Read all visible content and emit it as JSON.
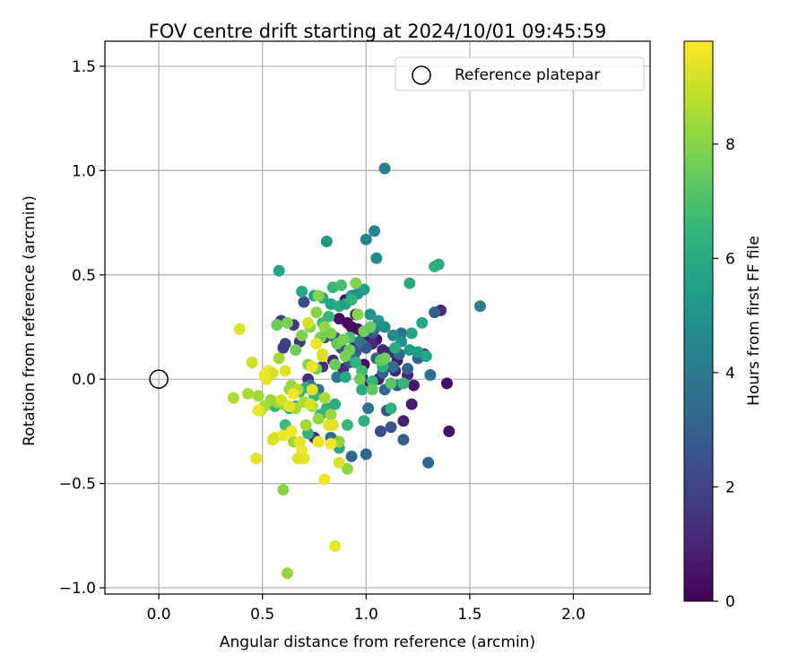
{
  "chart_data": {
    "type": "scatter",
    "title": "FOV centre drift starting at 2024/10/01 09:45:59",
    "xlabel": "Angular distance from reference (arcmin)",
    "ylabel": "Rotation from reference (arcmin)",
    "xlim": [
      -0.26,
      2.37
    ],
    "ylim": [
      -1.03,
      1.62
    ],
    "xticks": [
      0.0,
      0.5,
      1.0,
      1.5,
      2.0
    ],
    "xtick_labels": [
      "0.0",
      "0.5",
      "1.0",
      "1.5",
      "2.0"
    ],
    "yticks": [
      -1.0,
      -0.5,
      0.0,
      0.5,
      1.0,
      1.5
    ],
    "ytick_labels": [
      "−1.0",
      "−0.5",
      "0.0",
      "0.5",
      "1.0",
      "1.5"
    ],
    "grid": true,
    "legend": {
      "placement": "top-right",
      "entries": [
        {
          "label": "Reference platepar",
          "marker": "open-circle"
        }
      ]
    },
    "reference_point": {
      "x": 0.0,
      "y": 0.0
    },
    "colorbar": {
      "label": "Hours from first FF file",
      "colormap": "viridis",
      "range": [
        0,
        9.8
      ],
      "ticks": [
        0,
        2,
        4,
        6,
        8
      ],
      "tick_labels": [
        "0",
        "2",
        "4",
        "6",
        "8"
      ],
      "colors": [
        "#440154",
        "#482878",
        "#3e4989",
        "#31688e",
        "#26828e",
        "#1f9e89",
        "#35b779",
        "#6ece58",
        "#b5de2b",
        "#fde725"
      ]
    },
    "series": [
      {
        "x": [
          0.91,
          0.93,
          0.96,
          0.98,
          1.0,
          1.05,
          0.87,
          0.9,
          0.95,
          0.99,
          1.02,
          1.06,
          1.1,
          1.15,
          1.2,
          1.23,
          1.39,
          1.4,
          1.36,
          1.22,
          1.18,
          1.14,
          1.12,
          1.08,
          1.03,
          0.98,
          0.94,
          0.89,
          0.84,
          0.79,
          0.75,
          0.72,
          0.68,
          0.65,
          0.6,
          1.28
        ],
        "y": [
          0.27,
          0.25,
          0.24,
          0.23,
          0.21,
          0.19,
          0.29,
          0.38,
          0.31,
          0.07,
          -0.02,
          0.0,
          0.06,
          0.09,
          0.02,
          -0.03,
          -0.02,
          -0.25,
          0.33,
          -0.12,
          -0.2,
          0.04,
          0.13,
          0.14,
          0.17,
          0.01,
          0.15,
          0.05,
          0.09,
          0.06,
          -0.28,
          0.0,
          0.18,
          0.26,
          0.15,
          0.12
        ],
        "c": [
          0.2,
          0.3,
          0.4,
          0.5,
          0.6,
          0.5,
          0.4,
          0.6,
          0.8,
          0.3,
          0.5,
          0.8,
          0.9,
          0.7,
          1.0,
          0.6,
          0.4,
          0.5,
          1.2,
          0.7,
          0.8,
          1.0,
          1.1,
          0.9,
          1.1,
          1.2,
          1.3,
          1.2,
          1.0,
          1.3,
          1.4,
          1.2,
          1.5,
          1.6,
          1.7,
          1.5
        ]
      },
      {
        "x": [
          0.61,
          0.59,
          0.7,
          0.8,
          0.85,
          0.88,
          0.92,
          0.95,
          0.97,
          1.0,
          1.03,
          1.07,
          1.1,
          1.12,
          1.15,
          1.18,
          1.2,
          1.25,
          1.3,
          1.33,
          1.05,
          1.08,
          1.0,
          0.93,
          0.86,
          0.83,
          0.77,
          0.73,
          0.94,
          1.13,
          0.97,
          1.01,
          1.17,
          1.31,
          1.16,
          1.09,
          0.86,
          1.04
        ],
        "y": [
          0.17,
          0.28,
          0.37,
          0.2,
          0.2,
          0.15,
          0.08,
          0.13,
          0.18,
          0.15,
          0.22,
          -0.25,
          -0.15,
          -0.23,
          -0.03,
          -0.29,
          0.05,
          0.1,
          -0.4,
          0.32,
          0.1,
          0.03,
          -0.36,
          -0.37,
          -0.3,
          -0.28,
          -0.05,
          -0.03,
          0.1,
          0.06,
          0.18,
          -0.14,
          0.22,
          0.02,
          0.12,
          -0.05,
          0.01,
          0.24
        ],
        "c": [
          1.8,
          2.0,
          2.2,
          2.3,
          2.4,
          2.5,
          2.6,
          2.7,
          2.8,
          2.5,
          2.6,
          2.3,
          2.4,
          2.6,
          2.8,
          2.9,
          3.0,
          3.1,
          3.2,
          3.0,
          2.9,
          3.1,
          3.2,
          3.3,
          3.4,
          3.5,
          3.6,
          3.7,
          3.8,
          3.6,
          3.9,
          3.8,
          3.5,
          3.7,
          3.4,
          3.3,
          3.9,
          3.6
        ]
      },
      {
        "x": [
          1.09,
          1.04,
          1.0,
          1.05,
          0.81,
          0.58,
          0.69,
          0.75,
          0.79,
          0.83,
          0.87,
          0.9,
          0.93,
          0.96,
          0.99,
          1.02,
          1.06,
          1.09,
          1.13,
          1.17,
          1.21,
          1.25,
          1.29,
          1.33,
          1.35,
          1.55,
          1.21,
          1.27,
          1.22,
          1.14,
          1.08,
          1.03,
          0.98,
          0.95,
          0.9,
          0.85,
          0.81,
          0.78,
          0.75,
          0.71,
          0.68,
          0.66,
          0.63,
          0.55,
          0.56,
          0.61,
          0.72,
          0.87,
          0.91,
          0.99,
          1.12,
          1.18,
          1.07,
          0.98,
          0.92,
          0.82,
          0.79,
          0.84,
          0.88,
          0.93
        ],
        "y": [
          1.01,
          0.71,
          0.67,
          0.58,
          0.66,
          0.52,
          0.42,
          0.4,
          0.39,
          0.36,
          0.35,
          0.36,
          0.4,
          0.41,
          0.43,
          0.31,
          0.28,
          0.25,
          0.21,
          0.18,
          0.14,
          0.13,
          0.11,
          0.54,
          0.55,
          0.35,
          0.46,
          0.27,
          0.22,
          0.15,
          0.06,
          -0.01,
          -0.05,
          0.08,
          0.01,
          -0.12,
          -0.14,
          -0.17,
          -0.08,
          -0.04,
          -0.06,
          -0.13,
          -0.14,
          -0.11,
          -0.13,
          -0.22,
          -0.26,
          -0.33,
          -0.22,
          -0.2,
          -0.14,
          -0.02,
          0.09,
          0.04,
          0.2,
          0.3,
          0.27,
          0.44,
          0.45,
          0.38
        ],
        "c": [
          4.3,
          4.5,
          4.4,
          4.7,
          5.2,
          5.7,
          5.8,
          5.5,
          5.9,
          5.6,
          6.0,
          5.7,
          5.3,
          5.1,
          5.4,
          5.0,
          5.2,
          4.9,
          4.8,
          5.0,
          5.3,
          5.5,
          5.6,
          6.3,
          6.1,
          4.2,
          6.0,
          5.8,
          5.7,
          6.1,
          6.2,
          6.4,
          6.0,
          6.3,
          5.9,
          6.0,
          6.2,
          6.4,
          6.5,
          6.1,
          6.6,
          6.3,
          6.2,
          6.5,
          6.4,
          6.7,
          6.4,
          5.9,
          6.6,
          6.2,
          6.3,
          6.5,
          6.7,
          6.8,
          6.9,
          6.6,
          6.7,
          6.5,
          6.8,
          6.4
        ]
      },
      {
        "x": [
          0.57,
          0.62,
          0.66,
          0.69,
          0.73,
          0.76,
          0.78,
          0.8,
          0.83,
          0.86,
          0.89,
          0.92,
          0.96,
          0.99,
          1.02,
          1.07,
          1.09,
          1.12,
          1.03,
          0.97,
          0.9,
          0.85,
          0.76,
          0.72,
          0.67,
          0.64,
          0.6,
          0.57,
          0.54,
          0.51,
          0.48,
          0.36,
          0.43,
          0.49,
          0.53,
          0.58,
          0.63,
          0.66,
          0.7,
          0.74,
          0.77,
          0.8,
          0.83,
          0.87,
          0.91,
          0.95,
          0.71,
          0.65,
          0.6,
          0.67,
          0.62,
          0.77
        ],
        "y": [
          0.26,
          0.27,
          0.14,
          0.21,
          0.25,
          0.32,
          0.2,
          0.25,
          0.22,
          0.17,
          0.19,
          0.14,
          0.31,
          0.23,
          0.25,
          0.09,
          0.1,
          -0.02,
          -0.05,
          0.0,
          0.11,
          0.07,
          0.05,
          0.07,
          -0.05,
          -0.03,
          -0.12,
          -0.11,
          -0.1,
          -0.13,
          -0.08,
          -0.09,
          -0.07,
          -0.15,
          0.03,
          0.1,
          -0.05,
          -0.14,
          -0.11,
          -0.13,
          -0.19,
          -0.09,
          -0.17,
          -0.3,
          -0.43,
          0.46,
          -0.22,
          -0.3,
          -0.53,
          -0.05,
          -0.93,
          0.4
        ],
        "c": [
          7.5,
          7.8,
          7.6,
          7.9,
          8.1,
          8.0,
          7.7,
          8.2,
          7.9,
          7.4,
          7.8,
          7.6,
          8.0,
          7.7,
          7.5,
          7.3,
          7.6,
          7.2,
          7.4,
          7.6,
          7.8,
          7.5,
          7.7,
          8.0,
          8.1,
          8.3,
          8.2,
          8.4,
          8.3,
          8.5,
          8.4,
          8.6,
          8.5,
          8.7,
          8.6,
          8.4,
          8.3,
          8.5,
          8.6,
          8.4,
          8.2,
          8.5,
          8.3,
          8.2,
          8.1,
          7.9,
          8.4,
          8.3,
          8.0,
          8.6,
          8.2,
          8.0
        ]
      },
      {
        "x": [
          0.39,
          0.45,
          0.48,
          0.52,
          0.53,
          0.55,
          0.56,
          0.6,
          0.61,
          0.64,
          0.65,
          0.68,
          0.69,
          0.7,
          0.72,
          0.74,
          0.76,
          0.79,
          0.8,
          0.83,
          0.85,
          0.87,
          0.47,
          0.55,
          0.59,
          0.69,
          0.77,
          0.82,
          0.73,
          0.63,
          0.51,
          0.67,
          0.84,
          0.74,
          0.79
        ],
        "y": [
          0.24,
          0.08,
          -0.15,
          0.0,
          0.04,
          0.03,
          -0.28,
          -0.27,
          0.04,
          -0.25,
          -0.07,
          -0.3,
          -0.38,
          -0.38,
          0.27,
          -0.05,
          0.17,
          0.11,
          -0.48,
          -0.31,
          -0.8,
          -0.4,
          -0.38,
          -0.29,
          -0.1,
          -0.34,
          -0.3,
          -0.22,
          -0.12,
          -0.13,
          0.02,
          -0.38,
          -0.22,
          0.06,
          0.12
        ],
        "c": [
          9.3,
          9.1,
          9.5,
          9.4,
          9.6,
          9.2,
          9.4,
          9.5,
          9.3,
          9.6,
          9.7,
          9.5,
          9.6,
          9.4,
          9.2,
          9.3,
          9.5,
          9.4,
          9.6,
          9.7,
          9.5,
          9.3,
          9.4,
          9.2,
          9.1,
          9.6,
          9.5,
          9.3,
          9.2,
          9.4,
          9.5,
          9.3,
          9.4,
          9.6,
          9.2
        ]
      }
    ]
  }
}
